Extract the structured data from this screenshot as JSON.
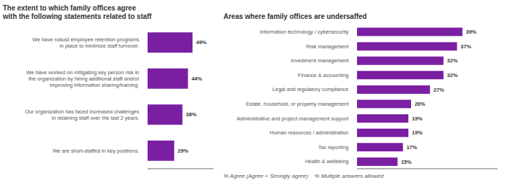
{
  "chart_data": [
    {
      "type": "bar",
      "orientation": "horizontal",
      "title": "The extent to which family offices agree\nwith the following statements related to staff",
      "categories": [
        "We have robust employee retention programs\nin place to minimize staff turnover.",
        "We have worked on mitigating key person risk in\nthe organization by hiring additional staff and/or\nimproving information sharing/training.",
        "Our organization has faced increased challenges\nin retaining staff over the last 2 years.",
        "We are short-staffed in key positions."
      ],
      "values": [
        49,
        44,
        38,
        29
      ],
      "value_labels": [
        "49%",
        "44%",
        "38%",
        "29%"
      ],
      "data_labels": true,
      "color": "#7B1FA2",
      "xlim": [
        0,
        72
      ],
      "tick_labels": "y"
    },
    {
      "type": "bar",
      "orientation": "horizontal",
      "title": "Areas where family offices are undersaffed",
      "categories": [
        "Information technology / cybersecurity",
        "Risk management",
        "Investment management",
        "Finance & accounting",
        "Legal and regulatory compliance",
        "Estate, household, or property management",
        "Administrative and project management support",
        "Human resources / administration",
        "Tax reporting",
        "Health & wellbeing"
      ],
      "values": [
        39,
        37,
        32,
        32,
        27,
        20,
        19,
        19,
        17,
        15
      ],
      "value_labels": [
        "39%",
        "37%",
        "32%",
        "32%",
        "27%",
        "20%",
        "19%",
        "19%",
        "17%",
        "15%"
      ],
      "data_labels": true,
      "color": "#7B1FA2",
      "xlim": [
        0,
        52
      ],
      "tick_labels": "y",
      "annotations": [
        "% Agree (Agree + Strongly agree)    % Multiple answers allowed"
      ]
    }
  ]
}
